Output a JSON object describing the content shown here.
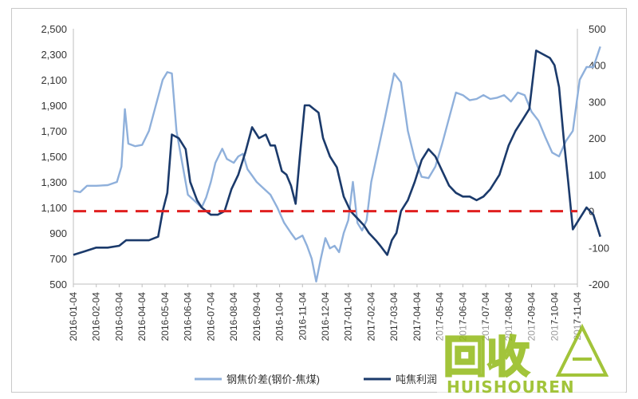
{
  "chart_data": {
    "type": "line",
    "x_categories": [
      "2016-01-04",
      "2016-02-04",
      "2016-03-04",
      "2016-04-04",
      "2016-05-04",
      "2016-06-04",
      "2016-07-04",
      "2016-08-04",
      "2016-09-04",
      "2016-10-04",
      "2016-11-04",
      "2016-12-04",
      "2017-01-04",
      "2017-02-04",
      "2017-03-04",
      "2017-04-04",
      "2017-05-04",
      "2017-06-04",
      "2017-07-04",
      "2017-08-04",
      "2017-09-04",
      "2017-10-04",
      "2017-11-04"
    ],
    "left_axis": {
      "min": 500,
      "max": 2500,
      "ticks": [
        "2,500",
        "2,300",
        "2,100",
        "1,900",
        "1,700",
        "1,500",
        "1,300",
        "1,100",
        "900",
        "700",
        "500"
      ]
    },
    "right_axis": {
      "min": -200,
      "max": 500,
      "ticks": [
        "500",
        "400",
        "300",
        "200",
        "100",
        "0",
        "-100",
        "-200"
      ],
      "negative_color": "#e02020"
    },
    "series": [
      {
        "name": "钢焦价差(钢价-焦煤)",
        "axis": "left",
        "color": "#8fb0db",
        "points": [
          [
            0,
            1230
          ],
          [
            0.3,
            1220
          ],
          [
            0.6,
            1270
          ],
          [
            1.0,
            1270
          ],
          [
            1.5,
            1275
          ],
          [
            1.9,
            1300
          ],
          [
            2.1,
            1420
          ],
          [
            2.25,
            1870
          ],
          [
            2.4,
            1600
          ],
          [
            2.7,
            1580
          ],
          [
            3.0,
            1590
          ],
          [
            3.3,
            1700
          ],
          [
            3.6,
            1900
          ],
          [
            3.9,
            2100
          ],
          [
            4.1,
            2160
          ],
          [
            4.3,
            2150
          ],
          [
            4.5,
            1700
          ],
          [
            4.7,
            1500
          ],
          [
            5.0,
            1200
          ],
          [
            5.3,
            1150
          ],
          [
            5.6,
            1100
          ],
          [
            5.8,
            1180
          ],
          [
            6.0,
            1300
          ],
          [
            6.2,
            1450
          ],
          [
            6.5,
            1560
          ],
          [
            6.7,
            1480
          ],
          [
            7.0,
            1450
          ],
          [
            7.2,
            1500
          ],
          [
            7.4,
            1520
          ],
          [
            7.6,
            1400
          ],
          [
            7.8,
            1350
          ],
          [
            8.0,
            1300
          ],
          [
            8.3,
            1250
          ],
          [
            8.6,
            1200
          ],
          [
            8.9,
            1100
          ],
          [
            9.2,
            980
          ],
          [
            9.5,
            900
          ],
          [
            9.7,
            850
          ],
          [
            10.0,
            880
          ],
          [
            10.2,
            800
          ],
          [
            10.4,
            700
          ],
          [
            10.6,
            520
          ],
          [
            10.8,
            700
          ],
          [
            11.0,
            860
          ],
          [
            11.2,
            780
          ],
          [
            11.4,
            800
          ],
          [
            11.6,
            750
          ],
          [
            11.8,
            900
          ],
          [
            12.0,
            1000
          ],
          [
            12.2,
            1300
          ],
          [
            12.4,
            980
          ],
          [
            12.6,
            920
          ],
          [
            12.8,
            1000
          ],
          [
            13.0,
            1300
          ],
          [
            13.3,
            1550
          ],
          [
            13.6,
            1800
          ],
          [
            14.0,
            2150
          ],
          [
            14.3,
            2080
          ],
          [
            14.6,
            1700
          ],
          [
            14.9,
            1480
          ],
          [
            15.2,
            1340
          ],
          [
            15.5,
            1330
          ],
          [
            15.8,
            1420
          ],
          [
            16.1,
            1600
          ],
          [
            16.4,
            1800
          ],
          [
            16.7,
            2000
          ],
          [
            17.0,
            1980
          ],
          [
            17.3,
            1940
          ],
          [
            17.6,
            1950
          ],
          [
            17.9,
            1980
          ],
          [
            18.2,
            1950
          ],
          [
            18.5,
            1960
          ],
          [
            18.8,
            1980
          ],
          [
            19.1,
            1930
          ],
          [
            19.4,
            2000
          ],
          [
            19.7,
            1980
          ],
          [
            20.0,
            1850
          ],
          [
            20.3,
            1780
          ],
          [
            20.6,
            1650
          ],
          [
            20.9,
            1530
          ],
          [
            21.2,
            1500
          ],
          [
            21.5,
            1620
          ],
          [
            21.8,
            1700
          ],
          [
            22.1,
            2100
          ],
          [
            22.4,
            2200
          ],
          [
            22.7,
            2200
          ],
          [
            23.0,
            2360
          ]
        ]
      },
      {
        "name": "吨焦利润",
        "axis": "right",
        "color": "#1b3a6b",
        "points": [
          [
            0,
            -120
          ],
          [
            0.5,
            -110
          ],
          [
            1.0,
            -100
          ],
          [
            1.5,
            -100
          ],
          [
            2.0,
            -95
          ],
          [
            2.3,
            -80
          ],
          [
            2.8,
            -80
          ],
          [
            3.3,
            -80
          ],
          [
            3.7,
            -70
          ],
          [
            3.9,
            0
          ],
          [
            4.1,
            50
          ],
          [
            4.3,
            210
          ],
          [
            4.6,
            200
          ],
          [
            4.9,
            170
          ],
          [
            5.1,
            80
          ],
          [
            5.4,
            30
          ],
          [
            5.6,
            10
          ],
          [
            5.8,
            0
          ],
          [
            6.0,
            -10
          ],
          [
            6.3,
            -10
          ],
          [
            6.6,
            0
          ],
          [
            6.9,
            60
          ],
          [
            7.2,
            100
          ],
          [
            7.5,
            160
          ],
          [
            7.8,
            230
          ],
          [
            8.1,
            200
          ],
          [
            8.4,
            210
          ],
          [
            8.6,
            180
          ],
          [
            8.8,
            180
          ],
          [
            9.1,
            110
          ],
          [
            9.3,
            100
          ],
          [
            9.5,
            70
          ],
          [
            9.7,
            20
          ],
          [
            9.9,
            160
          ],
          [
            10.1,
            290
          ],
          [
            10.3,
            290
          ],
          [
            10.5,
            280
          ],
          [
            10.7,
            270
          ],
          [
            10.9,
            200
          ],
          [
            11.2,
            150
          ],
          [
            11.5,
            120
          ],
          [
            11.8,
            40
          ],
          [
            12.1,
            0
          ],
          [
            12.4,
            -20
          ],
          [
            12.7,
            -40
          ],
          [
            12.9,
            -60
          ],
          [
            13.2,
            -80
          ],
          [
            13.4,
            -95
          ],
          [
            13.7,
            -120
          ],
          [
            13.9,
            -80
          ],
          [
            14.1,
            -60
          ],
          [
            14.3,
            0
          ],
          [
            14.6,
            30
          ],
          [
            14.9,
            80
          ],
          [
            15.2,
            140
          ],
          [
            15.5,
            170
          ],
          [
            15.8,
            150
          ],
          [
            16.1,
            110
          ],
          [
            16.4,
            70
          ],
          [
            16.7,
            50
          ],
          [
            17.0,
            40
          ],
          [
            17.3,
            40
          ],
          [
            17.6,
            30
          ],
          [
            17.9,
            40
          ],
          [
            18.2,
            60
          ],
          [
            18.6,
            100
          ],
          [
            19.0,
            180
          ],
          [
            19.3,
            220
          ],
          [
            19.6,
            250
          ],
          [
            19.9,
            280
          ],
          [
            20.2,
            440
          ],
          [
            20.5,
            430
          ],
          [
            20.8,
            420
          ],
          [
            21.0,
            400
          ],
          [
            21.2,
            340
          ],
          [
            21.4,
            200
          ],
          [
            21.6,
            80
          ],
          [
            21.8,
            -50
          ],
          [
            22.1,
            -20
          ],
          [
            22.4,
            10
          ],
          [
            22.7,
            -10
          ],
          [
            23.0,
            -70
          ]
        ]
      },
      {
        "name": "zero-reference",
        "axis": "right",
        "color": "#e02020",
        "y": 0
      }
    ],
    "legend": {
      "position": "bottom"
    },
    "grid": false
  },
  "legend": {
    "item1": "钢焦价差(钢价-焦煤)",
    "item2": "吨焦利润"
  },
  "watermark": {
    "text1": "回收",
    "text2": "HUISHOUREN"
  }
}
